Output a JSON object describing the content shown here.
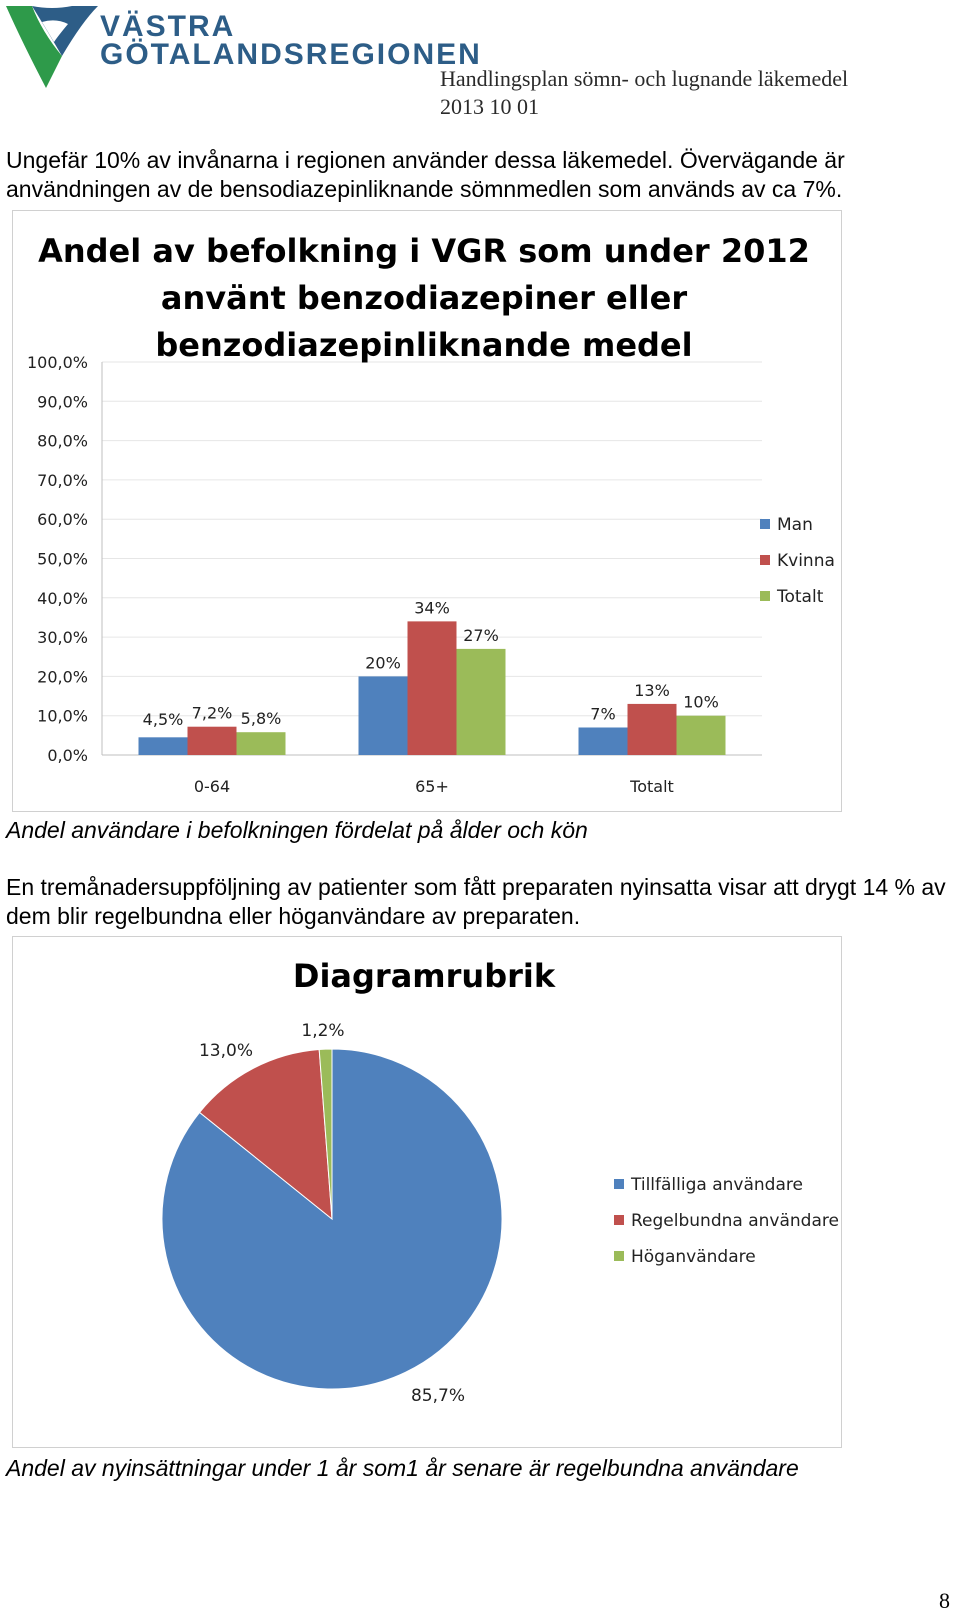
{
  "header": {
    "org_line1": "VÄSTRA",
    "org_line2": "GÖTALANDSREGIONEN",
    "doc_title": "Handlingsplan sömn- och lugnande läkemedel",
    "doc_date": "2013 10 01"
  },
  "intro_text": "Ungefär 10% av invånarna i regionen använder dessa läkemedel. Övervägande är användningen av de bensodiazepinliknande sömnmedlen som används av ca 7%.",
  "caption1": "Andel användare i befolkningen fördelat på ålder och kön",
  "followup_text": "En tremånadersuppföljning av patienter som fått preparaten nyinsatta visar att drygt 14 % av dem blir regelbundna eller höganvändare av preparaten.",
  "caption2": "Andel av nyinsättningar under 1 år som1 år senare är regelbundna användare",
  "page_number": "8",
  "colors": {
    "man": "#4f81bd",
    "kvinna": "#c0504d",
    "totalt": "#9bbb59",
    "grid": "#e6e6e6"
  },
  "chart_data": [
    {
      "type": "bar",
      "title_lines": [
        "Andel av befolkning i VGR som under 2012",
        "använt benzodiazepiner eller",
        "benzodiazepinliknande medel"
      ],
      "categories": [
        "0-64",
        "65+",
        "Totalt"
      ],
      "ylim": [
        0,
        100
      ],
      "yticks": [
        "0,0%",
        "10,0%",
        "20,0%",
        "30,0%",
        "40,0%",
        "50,0%",
        "60,0%",
        "70,0%",
        "80,0%",
        "90,0%",
        "100,0%"
      ],
      "legend_position": "right",
      "series": [
        {
          "name": "Man",
          "color": "#4f81bd",
          "values": [
            4.5,
            20,
            7
          ],
          "labels": [
            "4,5%",
            "20%",
            "7%"
          ]
        },
        {
          "name": "Kvinna",
          "color": "#c0504d",
          "values": [
            7.2,
            34,
            13
          ],
          "labels": [
            "7,2%",
            "34%",
            "13%"
          ]
        },
        {
          "name": "Totalt",
          "color": "#9bbb59",
          "values": [
            5.8,
            27,
            10
          ],
          "labels": [
            "5,8%",
            "27%",
            "10%"
          ]
        }
      ]
    },
    {
      "type": "pie",
      "title": "Diagramrubrik",
      "legend_position": "right",
      "slices": [
        {
          "name": "Tillfälliga användare",
          "value": 85.7,
          "label": "85,7%",
          "color": "#4f81bd"
        },
        {
          "name": "Regelbundna användare",
          "value": 13.0,
          "label": "13,0%",
          "color": "#c0504d"
        },
        {
          "name": "Höganvändare",
          "value": 1.2,
          "label": "1,2%",
          "color": "#9bbb59"
        }
      ]
    }
  ]
}
